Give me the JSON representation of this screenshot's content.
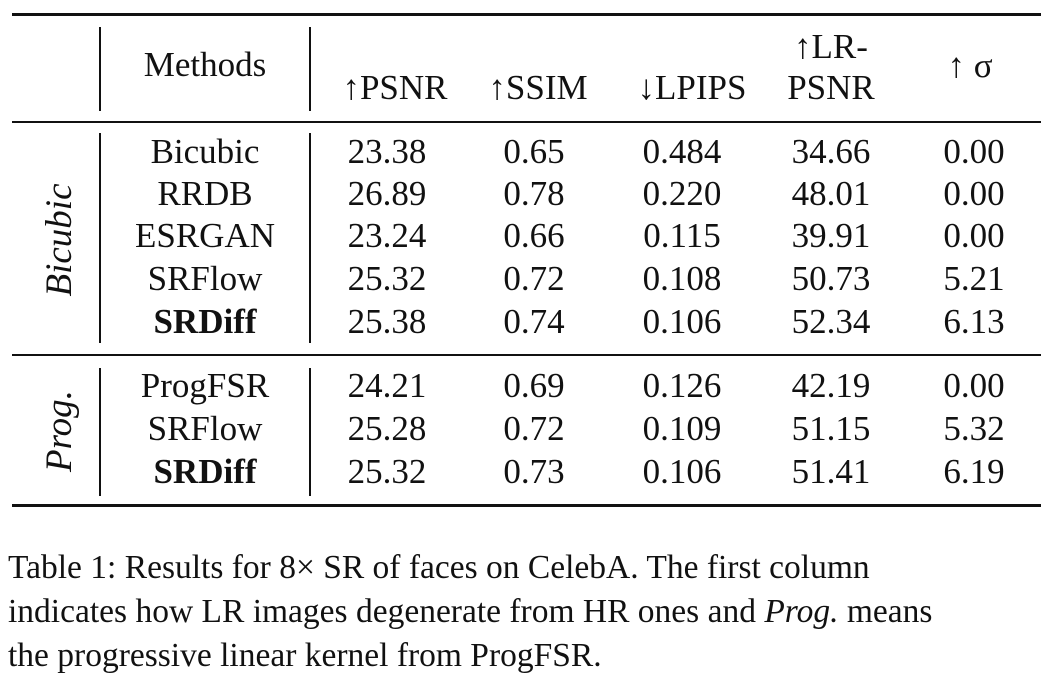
{
  "table": {
    "headers": {
      "methods": "Methods",
      "psnr": "↑PSNR",
      "ssim": "↑SSIM",
      "lpips": "↓LPIPS",
      "lrpsnr_line1": "↑LR-",
      "lrpsnr_line2": "PSNR",
      "sigma": "↑ σ"
    },
    "groups": [
      {
        "label": "Bicubic",
        "rows": [
          {
            "method": "Bicubic",
            "psnr": "23.38",
            "ssim": "0.65",
            "lpips": "0.484",
            "lrpsnr": "34.66",
            "sigma": "0.00"
          },
          {
            "method": "RRDB",
            "psnr": "26.89",
            "ssim": "0.78",
            "lpips": "0.220",
            "lrpsnr": "48.01",
            "sigma": "0.00"
          },
          {
            "method": "ESRGAN",
            "psnr": "23.24",
            "ssim": "0.66",
            "lpips": "0.115",
            "lrpsnr": "39.91",
            "sigma": "0.00"
          },
          {
            "method": "SRFlow",
            "psnr": "25.32",
            "ssim": "0.72",
            "lpips": "0.108",
            "lrpsnr": "50.73",
            "sigma": "5.21"
          },
          {
            "method": "SRDiff",
            "psnr": "25.38",
            "ssim": "0.74",
            "lpips": "0.106",
            "lrpsnr": "52.34",
            "sigma": "6.13"
          }
        ]
      },
      {
        "label": "Prog.",
        "rows": [
          {
            "method": "ProgFSR",
            "psnr": "24.21",
            "ssim": "0.69",
            "lpips": "0.126",
            "lrpsnr": "42.19",
            "sigma": "0.00"
          },
          {
            "method": "SRFlow",
            "psnr": "25.28",
            "ssim": "0.72",
            "lpips": "0.109",
            "lrpsnr": "51.15",
            "sigma": "5.32"
          },
          {
            "method": "SRDiff",
            "psnr": "25.32",
            "ssim": "0.73",
            "lpips": "0.106",
            "lrpsnr": "51.41",
            "sigma": "6.19"
          }
        ]
      }
    ]
  },
  "caption": {
    "line1": "Table 1: Results for 8× SR of faces on CelebA. The first column",
    "line2_a": "indicates how LR images degenerate from HR ones and ",
    "line2_em": "Prog.",
    "line2_b": " means",
    "line3": "the progressive linear kernel from ProgFSR."
  }
}
